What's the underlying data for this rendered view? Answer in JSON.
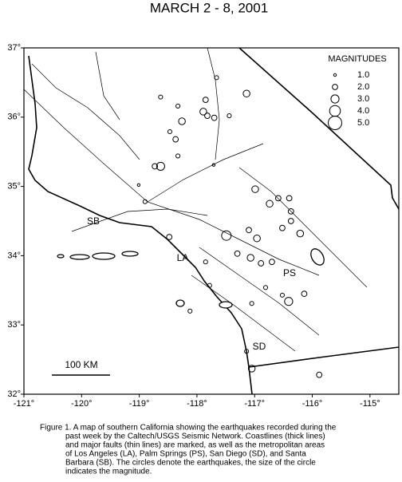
{
  "title": "MARCH 2 - 8, 2001",
  "map": {
    "xlim": [
      -121,
      -114.5
    ],
    "ylim": [
      32,
      37
    ],
    "xticks": [
      {
        "value": -121,
        "label": "-121°"
      },
      {
        "value": -120,
        "label": "-120°"
      },
      {
        "value": -119,
        "label": "-119°"
      },
      {
        "value": -118,
        "label": "-118°"
      },
      {
        "value": -117,
        "label": "-117°"
      },
      {
        "value": -116,
        "label": "-116°"
      },
      {
        "value": -115,
        "label": "-115°"
      }
    ],
    "yticks": [
      {
        "value": 32,
        "label": "32°"
      },
      {
        "value": 33,
        "label": "33°"
      },
      {
        "value": 34,
        "label": "34°"
      },
      {
        "value": 35,
        "label": "35°"
      },
      {
        "value": 36,
        "label": "36°"
      },
      {
        "value": 37,
        "label": "37°"
      }
    ],
    "earthquakes": {
      "lon": [
        -118.63,
        -118.26,
        -118.33,
        -117.89,
        -117.82,
        -117.7,
        -117.85,
        -117.44,
        -117.14,
        -117.66,
        -118.47,
        -118.37,
        -118.33,
        -118.63,
        -118.73,
        -119.01,
        -118.9,
        -117.71,
        -116.99,
        -116.74,
        -116.59,
        -116.4,
        -116.37,
        -116.37,
        -116.21,
        -116.52,
        -117.1,
        -117.49,
        -116.96,
        -117.07,
        -117.3,
        -116.89,
        -116.7,
        -118.48,
        -117.85,
        -117.78,
        -117.05,
        -116.81,
        -116.52,
        -116.41,
        -116.14,
        -118.12,
        -117.14,
        -117.05,
        -115.88
      ],
      "lat": [
        36.29,
        35.94,
        36.16,
        36.08,
        36.02,
        35.99,
        36.25,
        36.02,
        36.34,
        36.57,
        35.79,
        35.68,
        35.44,
        35.29,
        35.29,
        35.02,
        34.78,
        35.31,
        34.96,
        34.75,
        34.83,
        34.83,
        34.64,
        34.5,
        34.32,
        34.4,
        34.37,
        34.29,
        34.25,
        33.97,
        34.03,
        33.89,
        33.91,
        34.27,
        33.91,
        33.57,
        33.31,
        33.54,
        33.43,
        33.34,
        33.45,
        33.2,
        32.62,
        32.37,
        32.28
      ],
      "magnitude": [
        1.5,
        2.5,
        1.5,
        2.5,
        2.0,
        2.0,
        2.0,
        1.5,
        2.5,
        1.5,
        1.5,
        2.0,
        1.5,
        3.0,
        2.0,
        1.0,
        1.5,
        1.0,
        2.5,
        2.5,
        2.0,
        2.0,
        2.0,
        2.0,
        2.5,
        2.0,
        2.0,
        3.5,
        2.5,
        2.5,
        2.0,
        2.0,
        2.0,
        2.0,
        1.5,
        1.5,
        1.5,
        1.5,
        1.5,
        3.0,
        2.0,
        1.5,
        1.5,
        2.5,
        2.0
      ]
    },
    "legend": {
      "title": "MAGNITUDES",
      "magnitudes": [
        {
          "value": 1,
          "label": "1.0"
        },
        {
          "value": 2,
          "label": "2.0"
        },
        {
          "value": 3,
          "label": "3.0"
        },
        {
          "value": 4,
          "label": "4.0"
        },
        {
          "value": 5,
          "label": "5.0"
        }
      ]
    },
    "places": [
      {
        "label": "SB"
      },
      {
        "label": "LA"
      },
      {
        "label": "PS"
      },
      {
        "label": "SD"
      }
    ],
    "scale_label": "100 KM"
  },
  "caption": [
    "Figure 1. A map of southern California showing the earthquakes recorded during the",
    "past week by the Caltech/USGS Seismic Network.  Coastlines (thick lines)",
    "and major faults (thin lines) are marked, as well as the metropolitan areas",
    "of Los Angeles (LA), Palm Springs (PS), San Diego (SD), and Santa",
    "Barbara (SB).  The circles denote the earthquakes, the size of the circle",
    "indicates the magnitude."
  ]
}
